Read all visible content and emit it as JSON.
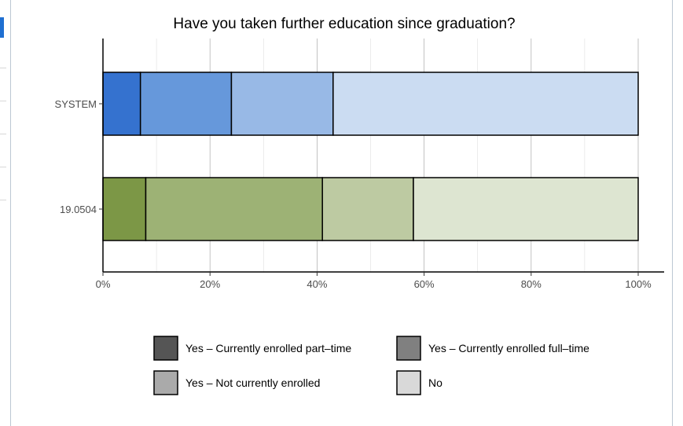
{
  "chart_data": {
    "type": "bar",
    "orientation": "horizontal",
    "stacked": true,
    "title": "Have you taken further education since graduation?",
    "xlabel": "",
    "ylabel": "",
    "xlim": [
      0,
      100
    ],
    "x_ticks": [
      "0%",
      "20%",
      "40%",
      "60%",
      "80%",
      "100%"
    ],
    "categories": [
      "SYSTEM",
      "19.0504"
    ],
    "series": [
      {
        "name": "Yes – Currently enrolled part–time",
        "values": [
          7,
          8
        ]
      },
      {
        "name": "Yes – Currently enrolled full–time",
        "values": [
          17,
          33
        ]
      },
      {
        "name": "Yes – Not currently enrolled",
        "values": [
          19,
          17
        ]
      },
      {
        "name": "No",
        "values": [
          57,
          42
        ]
      }
    ],
    "bar_colors": {
      "SYSTEM": [
        "#3572cf",
        "#6698db",
        "#98b9e6",
        "#cbdcf2"
      ],
      "19.0504": [
        "#7c9746",
        "#9db275",
        "#bdcaa2",
        "#dde5d1"
      ]
    },
    "legend_colors": [
      "#555555",
      "#808080",
      "#aaaaaa",
      "#d9d9d9"
    ],
    "grid": true,
    "legend_position": "bottom"
  }
}
